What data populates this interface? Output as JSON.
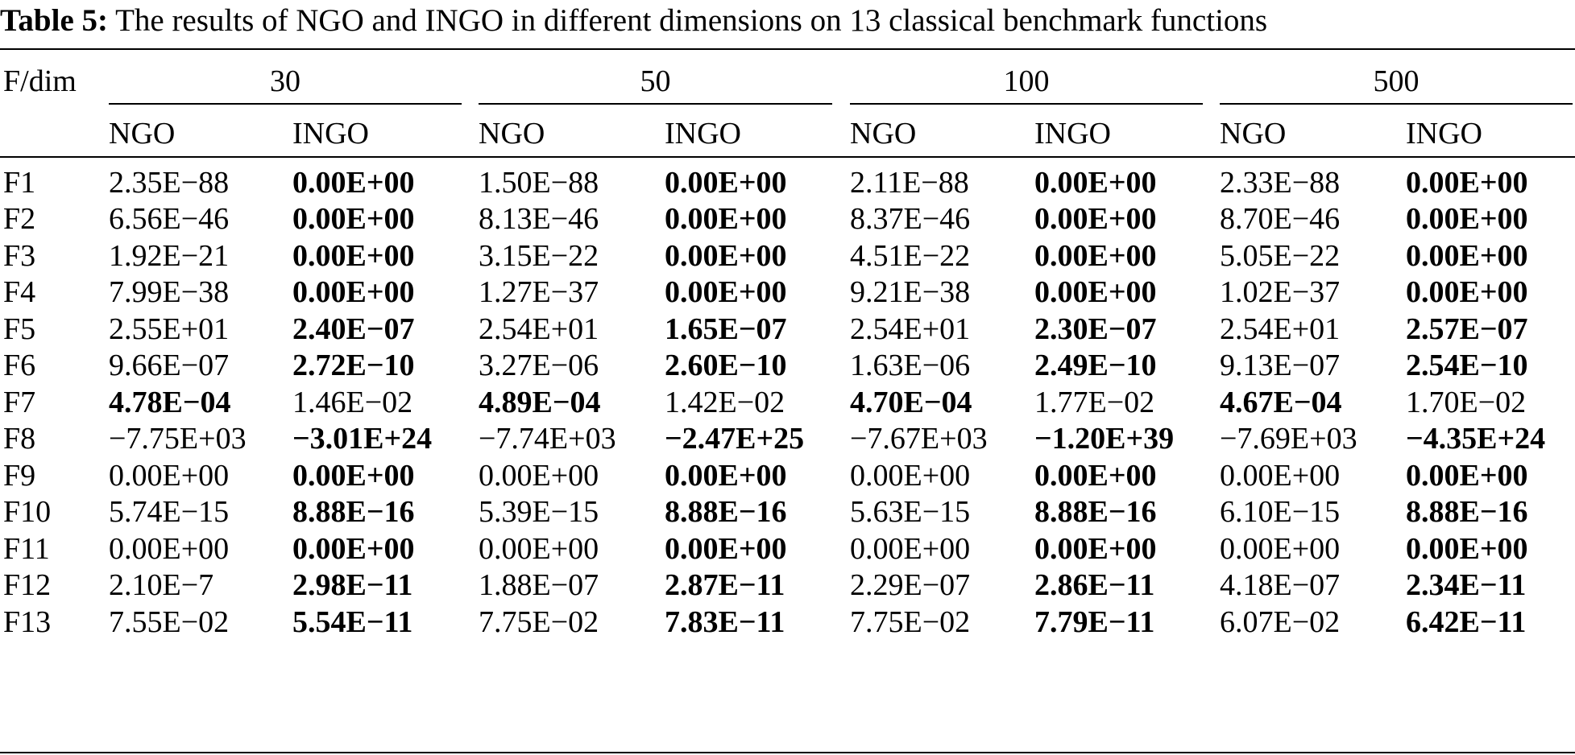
{
  "caption": {
    "label": "Table 5:",
    "text": "The results of NGO and INGO in different dimensions on 13 classical benchmark functions"
  },
  "table": {
    "stub_header": "F/dim",
    "dims": [
      "30",
      "50",
      "100",
      "500"
    ],
    "sub_headers": [
      "NGO",
      "INGO"
    ],
    "rows": [
      {
        "f": "F1",
        "cells": [
          "2.35E−88",
          "0.00E+00",
          "1.50E−88",
          "0.00E+00",
          "2.11E−88",
          "0.00E+00",
          "2.33E−88",
          "0.00E+00"
        ],
        "bold": [
          false,
          true,
          false,
          true,
          false,
          true,
          false,
          true
        ]
      },
      {
        "f": "F2",
        "cells": [
          "6.56E−46",
          "0.00E+00",
          "8.13E−46",
          "0.00E+00",
          "8.37E−46",
          "0.00E+00",
          "8.70E−46",
          "0.00E+00"
        ],
        "bold": [
          false,
          true,
          false,
          true,
          false,
          true,
          false,
          true
        ]
      },
      {
        "f": "F3",
        "cells": [
          "1.92E−21",
          "0.00E+00",
          "3.15E−22",
          "0.00E+00",
          "4.51E−22",
          "0.00E+00",
          "5.05E−22",
          "0.00E+00"
        ],
        "bold": [
          false,
          true,
          false,
          true,
          false,
          true,
          false,
          true
        ]
      },
      {
        "f": "F4",
        "cells": [
          "7.99E−38",
          "0.00E+00",
          "1.27E−37",
          "0.00E+00",
          "9.21E−38",
          "0.00E+00",
          "1.02E−37",
          "0.00E+00"
        ],
        "bold": [
          false,
          true,
          false,
          true,
          false,
          true,
          false,
          true
        ]
      },
      {
        "f": "F5",
        "cells": [
          "2.55E+01",
          "2.40E−07",
          "2.54E+01",
          "1.65E−07",
          "2.54E+01",
          "2.30E−07",
          "2.54E+01",
          "2.57E−07"
        ],
        "bold": [
          false,
          true,
          false,
          true,
          false,
          true,
          false,
          true
        ]
      },
      {
        "f": "F6",
        "cells": [
          "9.66E−07",
          "2.72E−10",
          "3.27E−06",
          "2.60E−10",
          "1.63E−06",
          "2.49E−10",
          "9.13E−07",
          "2.54E−10"
        ],
        "bold": [
          false,
          true,
          false,
          true,
          false,
          true,
          false,
          true
        ]
      },
      {
        "f": "F7",
        "cells": [
          "4.78E−04",
          "1.46E−02",
          "4.89E−04",
          "1.42E−02",
          "4.70E−04",
          "1.77E−02",
          "4.67E−04",
          "1.70E−02"
        ],
        "bold": [
          true,
          false,
          true,
          false,
          true,
          false,
          true,
          false
        ]
      },
      {
        "f": "F8",
        "cells": [
          "−7.75E+03",
          "−3.01E+24",
          "−7.74E+03",
          "−2.47E+25",
          "−7.67E+03",
          "−1.20E+39",
          "−7.69E+03",
          "−4.35E+24"
        ],
        "bold": [
          false,
          true,
          false,
          true,
          false,
          true,
          false,
          true
        ]
      },
      {
        "f": "F9",
        "cells": [
          "0.00E+00",
          "0.00E+00",
          "0.00E+00",
          "0.00E+00",
          "0.00E+00",
          "0.00E+00",
          "0.00E+00",
          "0.00E+00"
        ],
        "bold": [
          false,
          true,
          false,
          true,
          false,
          true,
          false,
          true
        ]
      },
      {
        "f": "F10",
        "cells": [
          "5.74E−15",
          "8.88E−16",
          "5.39E−15",
          "8.88E−16",
          "5.63E−15",
          "8.88E−16",
          "6.10E−15",
          "8.88E−16"
        ],
        "bold": [
          false,
          true,
          false,
          true,
          false,
          true,
          false,
          true
        ]
      },
      {
        "f": "F11",
        "cells": [
          "0.00E+00",
          "0.00E+00",
          "0.00E+00",
          "0.00E+00",
          "0.00E+00",
          "0.00E+00",
          "0.00E+00",
          "0.00E+00"
        ],
        "bold": [
          false,
          true,
          false,
          true,
          false,
          true,
          false,
          true
        ]
      },
      {
        "f": "F12",
        "cells": [
          "2.10E−7",
          "2.98E−11",
          "1.88E−07",
          "2.87E−11",
          "2.29E−07",
          "2.86E−11",
          "4.18E−07",
          "2.34E−11"
        ],
        "bold": [
          false,
          true,
          false,
          true,
          false,
          true,
          false,
          true
        ]
      },
      {
        "f": "F13",
        "cells": [
          "7.55E−02",
          "5.54E−11",
          "7.75E−02",
          "7.83E−11",
          "7.75E−02",
          "7.79E−11",
          "6.07E−02",
          "6.42E−11"
        ],
        "bold": [
          false,
          true,
          false,
          true,
          false,
          true,
          false,
          true
        ]
      }
    ]
  }
}
